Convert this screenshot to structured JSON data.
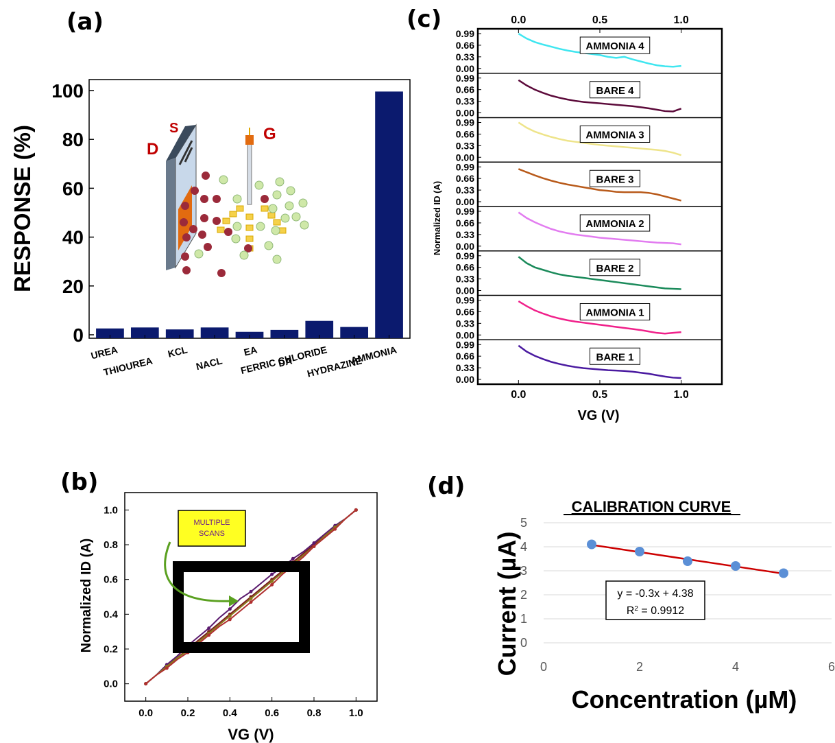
{
  "panels": {
    "a": "(a)",
    "b": "(b)",
    "c": "(c)",
    "d": "(d)"
  },
  "colors": {
    "bar": "#0b1a6e",
    "d_red": "#cc0000",
    "d_points": "#5b8fd6",
    "b_lines": [
      "#7a1f1f",
      "#5a1a6e",
      "#8a7a1a",
      "#b03030"
    ],
    "c_traces": [
      "#3fe6f0",
      "#5c0a3a",
      "#eee48a",
      "#b85a1a",
      "#e27cf0",
      "#1a8a5a",
      "#f0208a",
      "#4a1aa0"
    ]
  },
  "chart_data": [
    {
      "id": "a",
      "type": "bar",
      "categories": [
        "UREA",
        "THIOUREA",
        "KCL",
        "NACL",
        "EA",
        "DA",
        "FERRIC CHLORIDE",
        "HYDRAZINE",
        "AMMONIA"
      ],
      "values": [
        2.6,
        3.0,
        2.2,
        3.0,
        1.2,
        2.0,
        5.7,
        3.2,
        99.6
      ],
      "ylabel": "RESPONSE (%)",
      "ylim": [
        0,
        100
      ],
      "yticks": [
        0,
        20,
        40,
        60,
        80,
        100
      ],
      "schematic_labels": {
        "d": "D",
        "s": "S",
        "g": "G"
      }
    },
    {
      "id": "b",
      "type": "line",
      "xlabel": "VG (V)",
      "ylabel": "Normalized ID (A)",
      "xlim": [
        -0.1,
        1.1
      ],
      "ylim": [
        -0.1,
        1.1
      ],
      "xticks": [
        "0.0",
        "0.2",
        "0.4",
        "0.6",
        "0.8",
        "1.0"
      ],
      "yticks": [
        "0.0",
        "0.2",
        "0.4",
        "0.6",
        "0.8",
        "1.0"
      ],
      "x": [
        0.0,
        0.05,
        0.1,
        0.15,
        0.2,
        0.25,
        0.3,
        0.35,
        0.4,
        0.45,
        0.5,
        0.55,
        0.6,
        0.65,
        0.7,
        0.75,
        0.8,
        0.85,
        0.9,
        0.95,
        1.0
      ],
      "series": [
        {
          "values": [
            0.0,
            0.05,
            0.1,
            0.15,
            0.2,
            0.25,
            0.3,
            0.35,
            0.4,
            0.45,
            0.5,
            0.55,
            0.6,
            0.65,
            0.7,
            0.75,
            0.8,
            0.85,
            0.9,
            0.95,
            1.0
          ]
        },
        {
          "values": [
            0.0,
            0.05,
            0.11,
            0.16,
            0.22,
            0.27,
            0.32,
            0.38,
            0.43,
            0.49,
            0.53,
            0.58,
            0.63,
            0.67,
            0.72,
            0.76,
            0.81,
            0.86,
            0.91,
            0.95,
            1.0
          ]
        },
        {
          "values": [
            0.0,
            0.05,
            0.1,
            0.15,
            0.19,
            0.24,
            0.29,
            0.34,
            0.39,
            0.44,
            0.49,
            0.54,
            0.59,
            0.64,
            0.69,
            0.74,
            0.79,
            0.85,
            0.9,
            0.95,
            1.0
          ]
        },
        {
          "values": [
            0.0,
            0.05,
            0.09,
            0.14,
            0.18,
            0.23,
            0.28,
            0.33,
            0.37,
            0.42,
            0.47,
            0.52,
            0.57,
            0.63,
            0.68,
            0.73,
            0.79,
            0.84,
            0.89,
            0.95,
            1.0
          ]
        }
      ],
      "annotation": "MULTIPLE SCANS"
    },
    {
      "id": "c",
      "type": "line",
      "xlabel": "VG (V)",
      "ylabel": "Normalized ID (A)",
      "xlim": [
        -0.25,
        1.25
      ],
      "xticks": [
        "0.0",
        "0.5",
        "1.0"
      ],
      "yticks": [
        "0.00",
        "0.33",
        "0.66",
        "0.99"
      ],
      "x": [
        0.0,
        0.05,
        0.1,
        0.15,
        0.2,
        0.25,
        0.3,
        0.35,
        0.4,
        0.45,
        0.5,
        0.55,
        0.6,
        0.65,
        0.7,
        0.75,
        0.8,
        0.85,
        0.9,
        0.95,
        1.0
      ],
      "series": [
        {
          "name": "AMMONIA 4",
          "values": [
            0.99,
            0.85,
            0.75,
            0.68,
            0.62,
            0.56,
            0.51,
            0.47,
            0.44,
            0.41,
            0.38,
            0.33,
            0.3,
            0.33,
            0.26,
            0.2,
            0.14,
            0.09,
            0.06,
            0.05,
            0.07
          ]
        },
        {
          "name": "BARE 4",
          "values": [
            0.93,
            0.78,
            0.66,
            0.57,
            0.49,
            0.43,
            0.38,
            0.34,
            0.31,
            0.29,
            0.27,
            0.25,
            0.23,
            0.21,
            0.19,
            0.16,
            0.13,
            0.09,
            0.05,
            0.04,
            0.12
          ]
        },
        {
          "name": "AMMONIA 3",
          "values": [
            0.99,
            0.84,
            0.73,
            0.65,
            0.58,
            0.52,
            0.47,
            0.44,
            0.41,
            0.38,
            0.35,
            0.33,
            0.31,
            0.29,
            0.27,
            0.25,
            0.23,
            0.21,
            0.18,
            0.13,
            0.06
          ]
        },
        {
          "name": "BARE 3",
          "values": [
            0.93,
            0.84,
            0.75,
            0.67,
            0.6,
            0.54,
            0.49,
            0.45,
            0.41,
            0.37,
            0.33,
            0.31,
            0.28,
            0.27,
            0.27,
            0.27,
            0.25,
            0.21,
            0.15,
            0.09,
            0.03
          ]
        },
        {
          "name": "AMMONIA 2",
          "values": [
            0.96,
            0.8,
            0.68,
            0.58,
            0.49,
            0.42,
            0.37,
            0.33,
            0.3,
            0.27,
            0.24,
            0.22,
            0.2,
            0.18,
            0.16,
            0.14,
            0.12,
            0.1,
            0.09,
            0.08,
            0.05
          ]
        },
        {
          "name": "BARE 2",
          "values": [
            0.96,
            0.78,
            0.66,
            0.59,
            0.52,
            0.46,
            0.42,
            0.39,
            0.36,
            0.33,
            0.3,
            0.27,
            0.24,
            0.21,
            0.18,
            0.15,
            0.12,
            0.09,
            0.06,
            0.05,
            0.04
          ]
        },
        {
          "name": "AMMONIA 1",
          "values": [
            0.96,
            0.82,
            0.7,
            0.61,
            0.53,
            0.47,
            0.42,
            0.38,
            0.35,
            0.32,
            0.29,
            0.26,
            0.23,
            0.2,
            0.17,
            0.14,
            0.1,
            0.06,
            0.04,
            0.06,
            0.08
          ]
        },
        {
          "name": "BARE 1",
          "values": [
            0.96,
            0.79,
            0.67,
            0.58,
            0.5,
            0.44,
            0.39,
            0.35,
            0.32,
            0.3,
            0.28,
            0.26,
            0.25,
            0.24,
            0.22,
            0.19,
            0.16,
            0.12,
            0.08,
            0.05,
            0.04
          ]
        }
      ]
    },
    {
      "id": "d",
      "type": "scatter",
      "title": "CALIBRATION CURVE",
      "xlabel": "Concentration (µM)",
      "ylabel": "Current (µA)",
      "xlim": [
        0,
        6
      ],
      "ylim": [
        0,
        5
      ],
      "xticks": [
        "0",
        "2",
        "4",
        "6"
      ],
      "yticks": [
        "0",
        "1",
        "2",
        "3",
        "4",
        "5"
      ],
      "x": [
        1,
        2,
        3,
        4,
        5
      ],
      "values": [
        4.1,
        3.8,
        3.4,
        3.2,
        2.9
      ],
      "equation": "y = -0.3x + 4.38",
      "r2_label": "R",
      "r2_value": " = 0.9912"
    }
  ]
}
